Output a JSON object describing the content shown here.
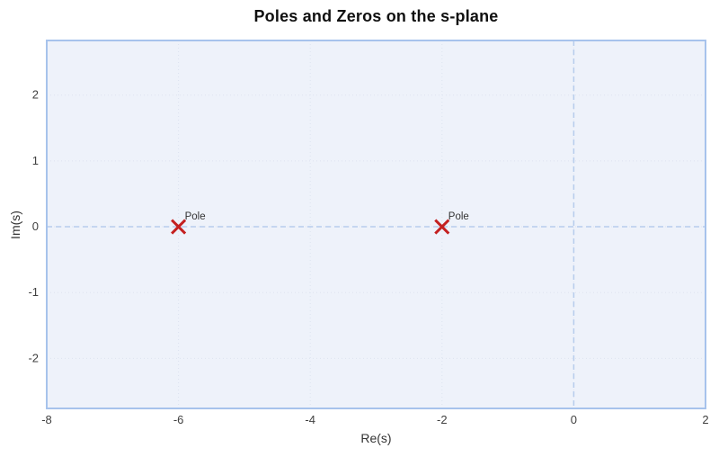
{
  "chart_data": {
    "type": "scatter",
    "title": "Poles and Zeros on the s-plane",
    "xlabel": "Re(s)",
    "ylabel": "Im(s)",
    "xlim": [
      -8,
      2
    ],
    "ylim": [
      -2.76,
      2.83
    ],
    "x_ticks": [
      -8,
      -6,
      -4,
      -2,
      0,
      2
    ],
    "y_ticks": [
      -2,
      -1,
      0,
      1,
      2
    ],
    "grid": "dotted",
    "zero_lines": true,
    "legend": "none",
    "series": [
      {
        "name": "Poles",
        "marker": "x",
        "points": [
          {
            "x": -6,
            "y": 0,
            "label": "Pole"
          },
          {
            "x": -2,
            "y": 0,
            "label": "Pole"
          }
        ]
      }
    ]
  },
  "colors": {
    "plot_bg": "#eef2fa",
    "border": "#a7c3ec",
    "grid": "#dde3f0",
    "zero_line": "#b7cdec",
    "marker": "#c42020",
    "point_label": "#333333",
    "tick_label": "#3f3f3f",
    "title": "#101010"
  }
}
